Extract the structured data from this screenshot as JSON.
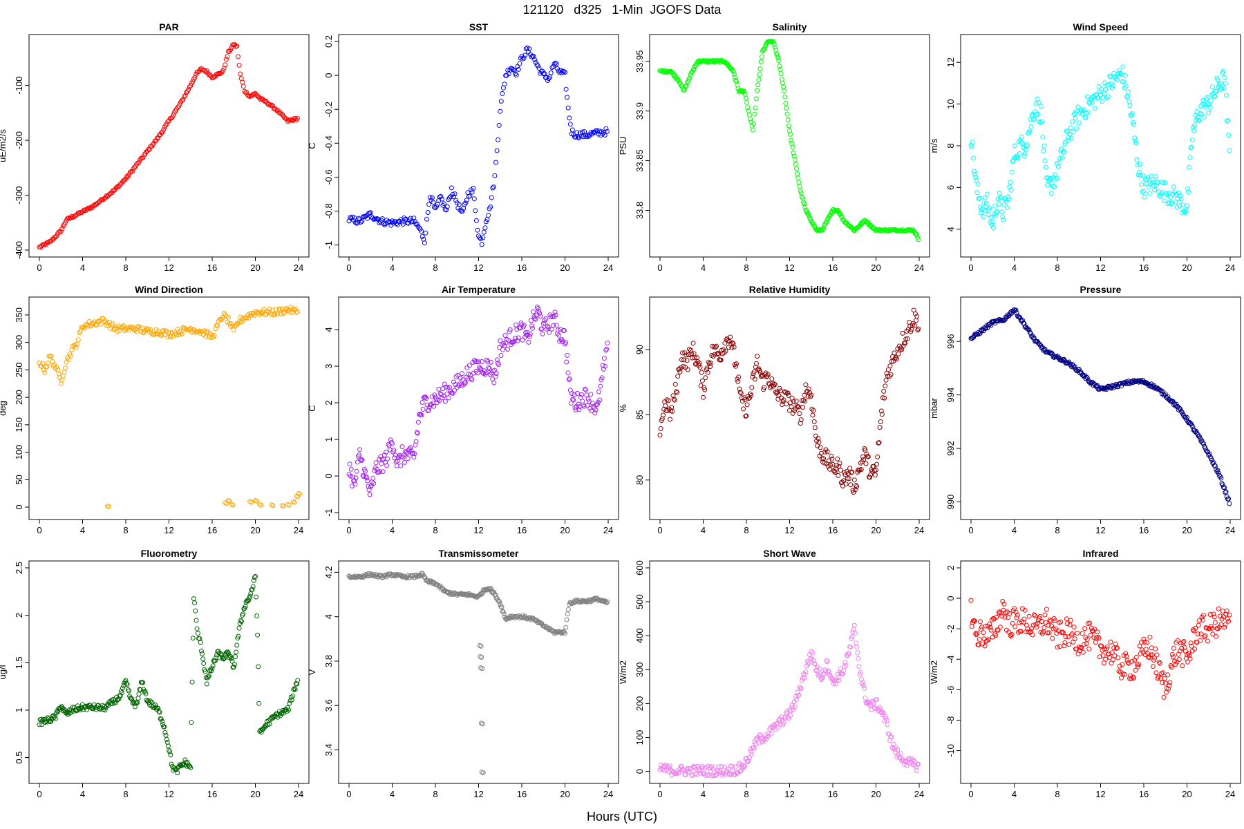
{
  "page": {
    "title": "121120   d325   1-Min  JGOFS Data",
    "xlabel": "Hours (UTC)"
  },
  "chart_data": [
    {
      "type": "scatter",
      "title": "PAR",
      "ylabel": "uE/m2/s",
      "color": "#ff0000",
      "xlim": [
        0,
        24
      ],
      "ylim": [
        -400,
        -20
      ],
      "xticks": [
        0,
        4,
        8,
        12,
        16,
        20,
        24
      ],
      "yticks": [
        -400,
        -300,
        -200,
        -100
      ],
      "noise": 2,
      "density": 3,
      "x": [
        0,
        1,
        2,
        2.5,
        3,
        4,
        5,
        6,
        7,
        8,
        9,
        10,
        11,
        12,
        13,
        14,
        14.5,
        15,
        15.5,
        16,
        17,
        17.5,
        18,
        18.3,
        18.6,
        19,
        19.5,
        20,
        20.5,
        21,
        22,
        23,
        24
      ],
      "y": [
        -395,
        -385,
        -365,
        -345,
        -340,
        -330,
        -320,
        -305,
        -290,
        -270,
        -245,
        -220,
        -195,
        -165,
        -135,
        -100,
        -80,
        -70,
        -75,
        -85,
        -75,
        -40,
        -25,
        -30,
        -80,
        -110,
        -120,
        -115,
        -125,
        -130,
        -145,
        -165,
        -160
      ]
    },
    {
      "type": "scatter",
      "title": "SST",
      "ylabel": "C",
      "color": "#0000ff",
      "xlim": [
        0,
        24
      ],
      "ylim": [
        -1.03,
        0.2
      ],
      "xticks": [
        0,
        4,
        8,
        12,
        16,
        20,
        24
      ],
      "yticks": [
        -1.0,
        -0.8,
        -0.6,
        -0.4,
        -0.2,
        0.0,
        0.2
      ],
      "noise": 0.02,
      "density": 3,
      "x": [
        0,
        1,
        2,
        3,
        4,
        5,
        6,
        6.5,
        7,
        7.5,
        8,
        8.5,
        9,
        9.5,
        10,
        10.5,
        11,
        11.5,
        12,
        12.3,
        12.7,
        13,
        13.5,
        14,
        14.5,
        15,
        15.5,
        16,
        16.5,
        17,
        17.5,
        18,
        18.5,
        19,
        19.5,
        20,
        20.3,
        20.6,
        21,
        22,
        23,
        24
      ],
      "y": [
        -0.85,
        -0.86,
        -0.82,
        -0.86,
        -0.87,
        -0.86,
        -0.86,
        -0.9,
        -0.97,
        -0.7,
        -0.8,
        -0.72,
        -0.8,
        -0.67,
        -0.75,
        -0.82,
        -0.7,
        -0.68,
        -0.95,
        -0.98,
        -0.85,
        -0.8,
        -0.6,
        -0.2,
        0.0,
        0.05,
        0.02,
        0.1,
        0.15,
        0.12,
        0.05,
        0.0,
        -0.02,
        0.07,
        0.02,
        0.0,
        -0.2,
        -0.33,
        -0.35,
        -0.35,
        -0.34,
        -0.33
      ]
    },
    {
      "type": "scatter",
      "title": "Salinity",
      "ylabel": "PSU",
      "color": "#00ff00",
      "xlim": [
        0,
        24
      ],
      "ylim": [
        33.76,
        33.97
      ],
      "xticks": [
        0,
        4,
        8,
        12,
        16,
        20,
        24
      ],
      "yticks": [
        33.8,
        33.85,
        33.9,
        33.95
      ],
      "noise": 0.001,
      "density": 4,
      "x": [
        0,
        1,
        1.8,
        2.2,
        2.6,
        3,
        3.5,
        4,
        5,
        6,
        6.8,
        7.3,
        7.8,
        8.2,
        8.6,
        9,
        9.5,
        10,
        10.5,
        11,
        11.5,
        12,
        12.5,
        13,
        13.5,
        14,
        14.5,
        15,
        15.5,
        16,
        16.5,
        17,
        18,
        19,
        20,
        21,
        22,
        23,
        23.5,
        24
      ],
      "y": [
        33.94,
        33.94,
        33.93,
        33.92,
        33.93,
        33.94,
        33.95,
        33.95,
        33.95,
        33.95,
        33.94,
        33.92,
        33.92,
        33.9,
        33.88,
        33.92,
        33.96,
        33.97,
        33.97,
        33.95,
        33.92,
        33.88,
        33.85,
        33.82,
        33.8,
        33.79,
        33.78,
        33.78,
        33.79,
        33.8,
        33.8,
        33.79,
        33.78,
        33.79,
        33.78,
        33.78,
        33.78,
        33.78,
        33.78,
        33.77
      ]
    },
    {
      "type": "scatter",
      "title": "Wind Speed",
      "ylabel": "m/s",
      "color": "#00ffff",
      "xlim": [
        0,
        24
      ],
      "ylim": [
        3,
        13
      ],
      "xticks": [
        0,
        4,
        8,
        12,
        16,
        20,
        24
      ],
      "yticks": [
        4,
        6,
        8,
        10,
        12
      ],
      "noise": 0.5,
      "density": 4,
      "x": [
        0,
        0.5,
        1,
        1.5,
        2,
        2.5,
        3,
        3.5,
        4,
        4.5,
        5,
        5.5,
        6,
        6.5,
        7,
        7.5,
        8,
        9,
        10,
        11,
        12,
        13,
        14,
        14.5,
        15,
        15.5,
        16,
        17,
        18,
        19,
        20,
        20.5,
        21,
        21.5,
        22,
        22.5,
        23,
        23.5,
        24
      ],
      "y": [
        8.5,
        6,
        5,
        5.2,
        4.2,
        5.5,
        4.8,
        5.5,
        7.5,
        8,
        8,
        9,
        10,
        9.5,
        6,
        6.2,
        6.8,
        8.5,
        9.5,
        10,
        10.5,
        11,
        11.5,
        10.5,
        9,
        7,
        6,
        6.2,
        5.8,
        5.5,
        5,
        8.5,
        9.5,
        9.8,
        10,
        10.5,
        11,
        11.2,
        7
      ]
    },
    {
      "type": "scatter",
      "title": "Wind Direction",
      "ylabel": "deg",
      "color": "#ffa500",
      "xlim": [
        0,
        24
      ],
      "ylim": [
        -10,
        370
      ],
      "xticks": [
        0,
        4,
        8,
        12,
        16,
        20,
        24
      ],
      "yticks": [
        0,
        50,
        100,
        150,
        200,
        250,
        300,
        350
      ],
      "noise": 6,
      "density": 3,
      "x": [
        0,
        0.5,
        1,
        1.5,
        2,
        2.5,
        3,
        3.5,
        4,
        5,
        6,
        7,
        8,
        9,
        10,
        11,
        12,
        13,
        14,
        15,
        16,
        16.5,
        17,
        17.5,
        18,
        18.5,
        19,
        20,
        21,
        22,
        23,
        24
      ],
      "y": [
        265,
        250,
        275,
        255,
        230,
        265,
        285,
        300,
        330,
        335,
        340,
        325,
        325,
        325,
        320,
        320,
        315,
        320,
        325,
        320,
        310,
        330,
        350,
        340,
        320,
        340,
        345,
        355,
        355,
        355,
        360,
        355
      ],
      "extra_x": [
        6.3,
        17.2,
        17.5,
        17.8,
        19.5,
        20,
        20.4,
        21.5,
        22.5,
        23,
        23.5,
        23.8,
        24
      ],
      "extra_y": [
        2,
        8,
        12,
        5,
        10,
        12,
        5,
        4,
        3,
        5,
        10,
        20,
        25
      ]
    },
    {
      "type": "scatter",
      "title": "Air Temperature",
      "ylabel": "C",
      "color": "#a020f0",
      "xlim": [
        0,
        24
      ],
      "ylim": [
        -1,
        4.7
      ],
      "xticks": [
        0,
        4,
        8,
        12,
        16,
        20,
        24
      ],
      "yticks": [
        -1,
        0,
        1,
        2,
        3,
        4
      ],
      "noise": 0.25,
      "density": 4,
      "x": [
        0,
        0.5,
        1,
        1.5,
        2,
        2.5,
        3,
        3.5,
        4,
        4.5,
        5,
        6,
        6.5,
        7,
        8,
        9,
        10,
        11,
        12,
        13,
        13.5,
        14,
        15,
        16,
        16.5,
        17,
        17.5,
        18,
        19,
        19.5,
        20,
        20.5,
        21,
        22,
        23,
        23.5,
        24
      ],
      "y": [
        0.3,
        -0.3,
        0.6,
        0.0,
        -0.5,
        0.2,
        0.3,
        0.5,
        1.0,
        0.3,
        0.6,
        0.5,
        1.6,
        2.0,
        2.1,
        2.3,
        2.5,
        2.8,
        3.0,
        3.0,
        2.7,
        3.5,
        3.8,
        4.0,
        3.7,
        4.2,
        4.5,
        4.0,
        4.3,
        3.9,
        3.8,
        2.2,
        2.0,
        2.2,
        1.8,
        2.8,
        3.5
      ]
    },
    {
      "type": "scatter",
      "title": "Relative Humidity",
      "ylabel": "%",
      "color": "#8b0000",
      "xlim": [
        0,
        24
      ],
      "ylim": [
        77.5,
        93.5
      ],
      "xticks": [
        0,
        4,
        8,
        12,
        16,
        20,
        24
      ],
      "yticks": [
        80,
        85,
        90
      ],
      "noise": 0.7,
      "density": 4,
      "x": [
        0,
        0.5,
        1,
        1.5,
        2,
        2.5,
        3,
        3.5,
        4,
        4.5,
        5,
        5.5,
        6,
        6.5,
        7,
        7.5,
        8,
        8.5,
        9,
        9.5,
        10,
        10.5,
        11,
        12,
        13,
        13.5,
        14,
        14.5,
        15,
        15.5,
        16,
        16.5,
        17,
        17.5,
        18,
        18.5,
        19,
        19.5,
        20,
        20.5,
        21,
        22,
        23,
        23.5,
        24
      ],
      "y": [
        84,
        86,
        85,
        87,
        89.5,
        89,
        90,
        89,
        87,
        89,
        90,
        89.5,
        90.5,
        91,
        89,
        86,
        85.5,
        87,
        89,
        87.5,
        88,
        87,
        86.5,
        86,
        85,
        87,
        86.5,
        83,
        82,
        81.5,
        81,
        81,
        80,
        80.5,
        79.5,
        81,
        82,
        80.5,
        80.5,
        85,
        88,
        90,
        91.5,
        92.5,
        92
      ]
    },
    {
      "type": "scatter",
      "title": "Pressure",
      "ylabel": "mbar",
      "color": "#000080",
      "xlim": [
        0,
        24
      ],
      "ylim": [
        989.6,
        997.4
      ],
      "xticks": [
        0,
        4,
        8,
        12,
        16,
        20,
        24
      ],
      "yticks": [
        990,
        992,
        994,
        996
      ],
      "noise": 0.06,
      "density": 4,
      "x": [
        0,
        1,
        2,
        3,
        4,
        5,
        6,
        7,
        8,
        9,
        10,
        11,
        12,
        13,
        14,
        15,
        16,
        17,
        18,
        19,
        20,
        21,
        22,
        23,
        24
      ],
      "y": [
        996.1,
        996.4,
        996.7,
        996.8,
        997.2,
        996.6,
        996.0,
        995.6,
        995.4,
        995.2,
        994.9,
        994.5,
        994.2,
        994.3,
        994.4,
        994.5,
        994.5,
        994.3,
        994.0,
        993.6,
        993.1,
        992.5,
        991.8,
        991.0,
        989.9
      ]
    },
    {
      "type": "scatter",
      "title": "Fluorometry",
      "ylabel": "ug/l",
      "color": "#006400",
      "xlim": [
        0,
        24
      ],
      "ylim": [
        0.3,
        2.5
      ],
      "xticks": [
        0,
        4,
        8,
        12,
        16,
        20,
        24
      ],
      "yticks": [
        0.5,
        1.0,
        1.5,
        2.0,
        2.5
      ],
      "noise": 0.03,
      "density": 4,
      "x": [
        0,
        1,
        1.5,
        2,
        2.5,
        3,
        4,
        5,
        6,
        7,
        7.5,
        8,
        8.5,
        9,
        9.5,
        10,
        10.5,
        11,
        11.5,
        12,
        12.3,
        12.7,
        13,
        13.5,
        14,
        14.3,
        14.6,
        15,
        15.5,
        16,
        16.5,
        17,
        17.5,
        18,
        18.5,
        19,
        19.5,
        20,
        20.2,
        20.4,
        21,
        22,
        23,
        24
      ],
      "y": [
        0.87,
        0.9,
        0.93,
        1.05,
        0.95,
        1.0,
        1.03,
        1.03,
        1.02,
        1.1,
        1.15,
        1.3,
        1.1,
        1.05,
        1.3,
        1.1,
        1.05,
        1.0,
        0.85,
        0.6,
        0.4,
        0.35,
        0.4,
        0.45,
        0.4,
        2.2,
        1.85,
        1.65,
        1.3,
        1.45,
        1.6,
        1.55,
        1.6,
        1.45,
        1.85,
        2.1,
        2.2,
        2.4,
        1.8,
        0.75,
        0.85,
        0.95,
        1.0,
        1.35
      ]
    },
    {
      "type": "scatter",
      "title": "Transmissometer",
      "ylabel": "V",
      "color": "#808080",
      "xlim": [
        0,
        24
      ],
      "ylim": [
        3.28,
        4.22
      ],
      "xticks": [
        0,
        4,
        8,
        12,
        16,
        20,
        24
      ],
      "yticks": [
        3.4,
        3.6,
        3.8,
        4.0,
        4.2
      ],
      "noise": 0.006,
      "density": 4,
      "x": [
        0,
        1,
        2,
        3,
        4,
        5,
        6,
        6.8,
        7.2,
        8,
        9,
        10,
        11,
        12,
        12.5,
        13,
        13.5,
        14,
        14.5,
        15,
        16,
        17,
        18,
        19,
        20,
        20.4,
        21,
        22,
        23,
        24
      ],
      "y": [
        4.18,
        4.18,
        4.19,
        4.18,
        4.19,
        4.18,
        4.18,
        4.19,
        4.16,
        4.15,
        4.11,
        4.1,
        4.1,
        4.09,
        4.12,
        4.13,
        4.1,
        4.06,
        3.99,
        4.0,
        4.0,
        3.99,
        3.96,
        3.93,
        3.93,
        4.06,
        4.07,
        4.07,
        4.08,
        4.06
      ],
      "extra_x": [
        12.1,
        12.15,
        12.2,
        12.25,
        12.3
      ],
      "extra_y": [
        3.87,
        3.82,
        3.77,
        3.52,
        3.3
      ]
    },
    {
      "type": "scatter",
      "title": "Short Wave",
      "ylabel": "W/m2",
      "color": "#ee82ee",
      "xlim": [
        0,
        24
      ],
      "ylim": [
        -15,
        600
      ],
      "xticks": [
        0,
        4,
        8,
        12,
        16,
        20,
        24
      ],
      "yticks": [
        0,
        100,
        200,
        300,
        400,
        500,
        600
      ],
      "noise": 15,
      "density": 4,
      "x": [
        0,
        1,
        2,
        3,
        4,
        5,
        6,
        7,
        7.5,
        8,
        8.5,
        9,
        10,
        11,
        12,
        12.5,
        13,
        13.5,
        14,
        14.5,
        15,
        15.5,
        16,
        16.5,
        17,
        17.5,
        18,
        18.5,
        19,
        19.5,
        20,
        20.5,
        21,
        21.5,
        22,
        23,
        24
      ],
      "y": [
        10,
        3,
        2,
        2,
        2,
        2,
        2,
        5,
        10,
        30,
        60,
        90,
        110,
        140,
        170,
        200,
        250,
        300,
        350,
        300,
        280,
        320,
        260,
        280,
        300,
        350,
        420,
        300,
        220,
        190,
        200,
        180,
        140,
        80,
        50,
        25,
        15
      ]
    },
    {
      "type": "scatter",
      "title": "Infrared",
      "ylabel": "W/m2",
      "color": "#ff0000",
      "xlim": [
        0,
        24
      ],
      "ylim": [
        -11.7,
        2
      ],
      "xticks": [
        0,
        4,
        8,
        12,
        16,
        20,
        24
      ],
      "yticks": [
        -10,
        -8,
        -6,
        -4,
        -2,
        0,
        2
      ],
      "noise": 0.9,
      "density": 4,
      "x": [
        0,
        0.5,
        1,
        1.5,
        2,
        2.5,
        3,
        3.5,
        4,
        5,
        6,
        7,
        8,
        9,
        10,
        11,
        12,
        13,
        14,
        15,
        16,
        16.5,
        17,
        17.5,
        18,
        18.5,
        19,
        19.5,
        20,
        20.5,
        21,
        22,
        23,
        24
      ],
      "y": [
        -0.8,
        -2.5,
        -2.2,
        -2.5,
        -2.2,
        -1.5,
        -0.5,
        -1.8,
        -1.5,
        -1.5,
        -2,
        -1.5,
        -2.5,
        -2.2,
        -2.8,
        -2.5,
        -3.3,
        -3.5,
        -4.5,
        -4.5,
        -3.5,
        -3.2,
        -4,
        -5,
        -6,
        -4.5,
        -3.5,
        -3.5,
        -4,
        -3,
        -2,
        -2,
        -1.5,
        -1.5
      ]
    }
  ]
}
